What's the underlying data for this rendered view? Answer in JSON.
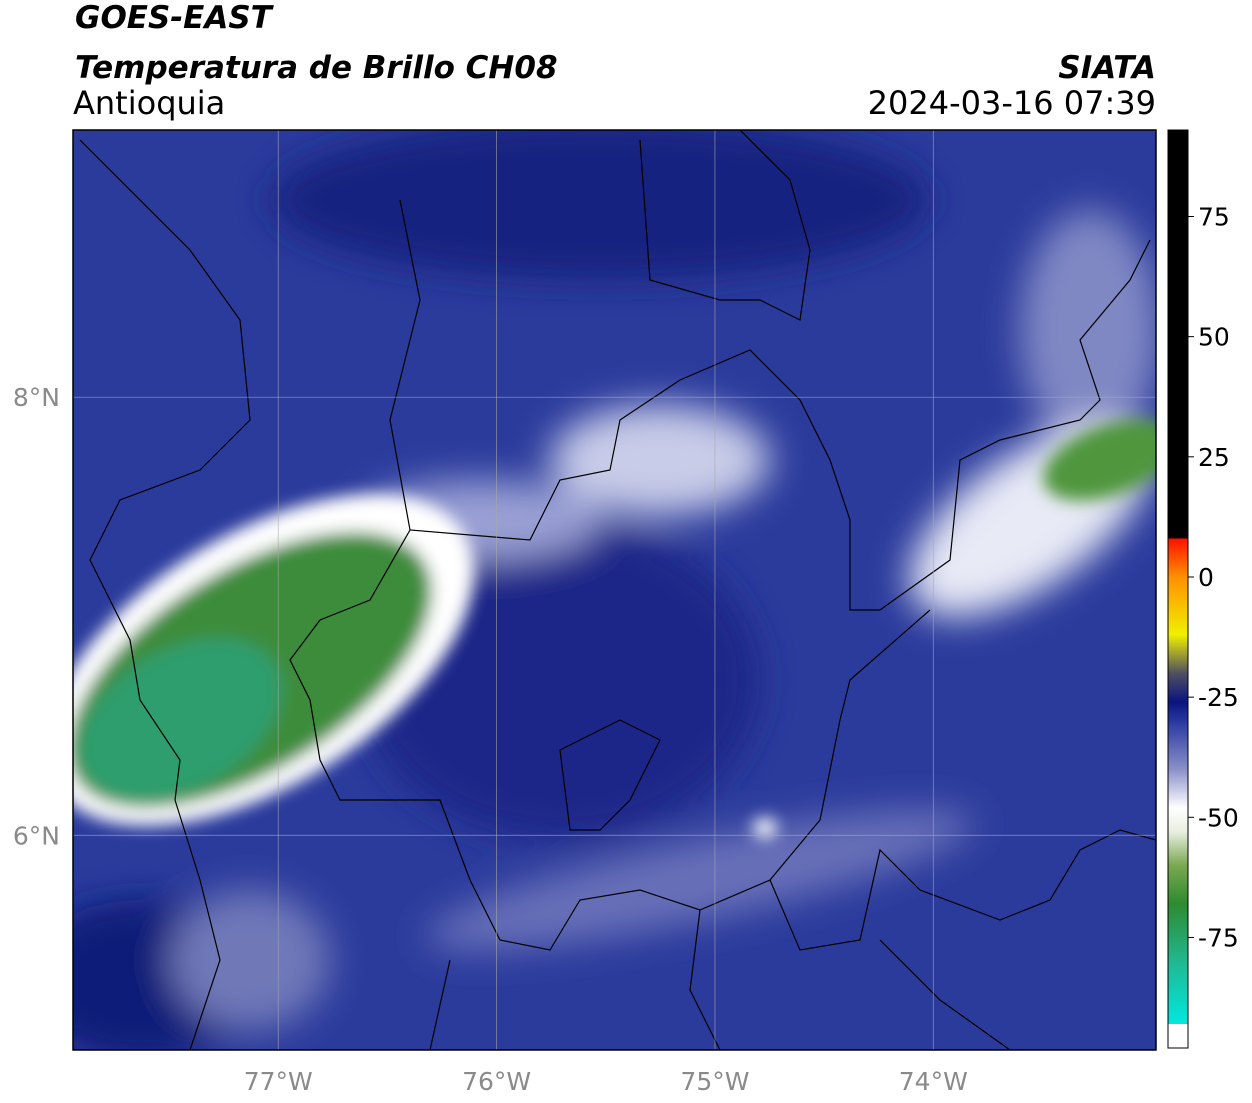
{
  "header": {
    "title": "GOES-EAST",
    "subtitle": "Temperatura de Brillo CH08",
    "region": "Antioquia",
    "source": "SIATA",
    "datetime": "2024-03-16 07:39"
  },
  "map": {
    "xlim": [
      -77.94,
      -72.98
    ],
    "ylim": [
      5.02,
      9.22
    ],
    "xticks": [
      {
        "value": -77,
        "label": "77°W"
      },
      {
        "value": -76,
        "label": "76°W"
      },
      {
        "value": -75,
        "label": "75°W"
      },
      {
        "value": -74,
        "label": "74°W"
      }
    ],
    "yticks": [
      {
        "value": 8,
        "label": "8°N"
      },
      {
        "value": 6,
        "label": "6°N"
      }
    ],
    "grid": true
  },
  "colorbar": {
    "lim": [
      -98,
      93
    ],
    "ticks": [
      75,
      50,
      25,
      0,
      -25,
      -50,
      -75
    ],
    "stops": [
      {
        "value": -98,
        "color": "#ffffff"
      },
      {
        "value": -93,
        "color": "#ffffff"
      },
      {
        "value": -93,
        "color": "#00e8e0"
      },
      {
        "value": -80,
        "color": "#20b890"
      },
      {
        "value": -68,
        "color": "#2e8a30"
      },
      {
        "value": -60,
        "color": "#7aa850"
      },
      {
        "value": -53,
        "color": "#e8efe0"
      },
      {
        "value": -48,
        "color": "#ffffff"
      },
      {
        "value": -40,
        "color": "#8a90c8"
      },
      {
        "value": -30,
        "color": "#2838a0"
      },
      {
        "value": -26,
        "color": "#0a1480"
      },
      {
        "value": -20,
        "color": "#505060"
      },
      {
        "value": -12,
        "color": "#f0f000"
      },
      {
        "value": 0,
        "color": "#ff9000"
      },
      {
        "value": 8,
        "color": "#ff1000"
      },
      {
        "value": 8,
        "color": "#000000"
      },
      {
        "value": 93,
        "color": "#000000"
      }
    ]
  }
}
